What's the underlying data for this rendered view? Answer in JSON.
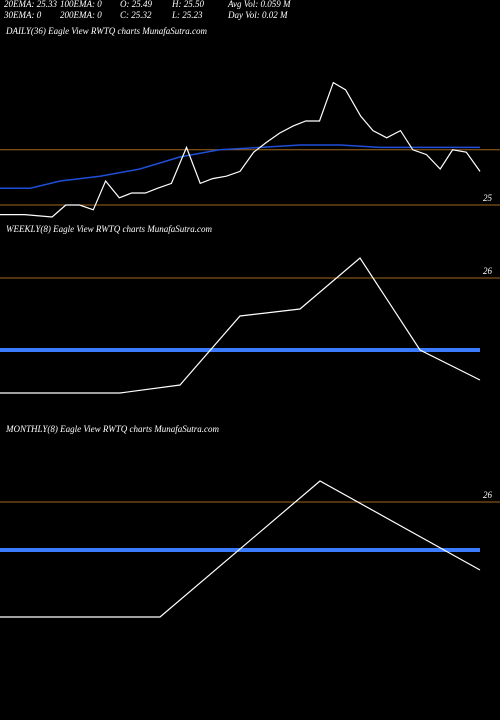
{
  "header": {
    "rows": [
      [
        "20EMA: 25.33",
        "100EMA: 0",
        "O: 25.49",
        "H: 25.50",
        "Avg Vol: 0.059 M"
      ],
      [
        "30EMA: 0",
        "200EMA: 0",
        "C: 25.32",
        "L: 25.23",
        "Day Vol: 0.02 M"
      ]
    ]
  },
  "chart_data": [
    {
      "type": "line",
      "title": "DAILY(36) Eagle  View  RWTQ charts MunafaSutra.com",
      "xlim": [
        0,
        35
      ],
      "ylim": [
        24.95,
        25.7
      ],
      "yticks": [
        25
      ],
      "reference_lines": [
        25.23
      ],
      "series": [
        {
          "name": "Price",
          "color": "#ffffff",
          "width": 1.2,
          "x": [
            0,
            1.8,
            3.8,
            4.8,
            5.8,
            6.8,
            7.7,
            8.7,
            9.6,
            10.6,
            11.5,
            12.5,
            13.6,
            14.6,
            15.5,
            16.5,
            17.5,
            18.5,
            19.4,
            20.4,
            21.4,
            22.3,
            23.3,
            24.3,
            25.2,
            26.3,
            27.2,
            28.2,
            29.2,
            30.1,
            31.1,
            32.1,
            33,
            34,
            35
          ],
          "values": [
            24.96,
            24.96,
            24.95,
            25,
            25,
            24.98,
            25.1,
            25.03,
            25.05,
            25.05,
            25.07,
            25.09,
            25.24,
            25.09,
            25.11,
            25.12,
            25.14,
            25.22,
            25.26,
            25.3,
            25.33,
            25.35,
            25.35,
            25.51,
            25.48,
            25.37,
            25.31,
            25.28,
            25.31,
            25.23,
            25.21,
            25.15,
            25.23,
            25.22,
            25.14
          ]
        },
        {
          "name": "20EMA",
          "color": "#1f4fd8",
          "width": 1.5,
          "x": [
            0,
            2.2,
            4.4,
            7.3,
            10.2,
            13.1,
            16,
            19,
            21.9,
            24.8,
            27.7,
            30.6,
            35
          ],
          "values": [
            25.07,
            25.07,
            25.1,
            25.12,
            25.15,
            25.2,
            25.23,
            25.24,
            25.25,
            25.25,
            25.24,
            25.24,
            25.24
          ]
        }
      ]
    },
    {
      "type": "line",
      "title": "WEEKLY(8) Eagle  View  RWTQ charts MunafaSutra.com",
      "xlim": [
        0,
        8
      ],
      "ylim": [
        24.8,
        26.4
      ],
      "yticks": [
        26
      ],
      "series": [
        {
          "name": "Price",
          "color": "#ffffff",
          "width": 1.2,
          "x": [
            0,
            2,
            3,
            4,
            5,
            6,
            7,
            8
          ],
          "values": [
            24.85,
            24.85,
            24.93,
            25.62,
            25.69,
            26.2,
            25.28,
            24.98
          ]
        },
        {
          "name": "20EMA",
          "color": "#3a7bff",
          "width": 4,
          "x": [
            0,
            8
          ],
          "values": [
            25.28,
            25.28
          ]
        }
      ]
    },
    {
      "type": "line",
      "title": "MONTHLY(8) Eagle  View  RWTQ charts MunafaSutra.com",
      "xlim": [
        0,
        3
      ],
      "ylim": [
        24.8,
        26.4
      ],
      "yticks": [
        26
      ],
      "series": [
        {
          "name": "Price",
          "color": "#ffffff",
          "width": 1.2,
          "x": [
            0,
            1,
            2,
            3
          ],
          "values": [
            24.85,
            24.85,
            26.21,
            25.32
          ]
        },
        {
          "name": "20EMA",
          "color": "#3a7bff",
          "width": 4,
          "x": [
            0,
            3
          ],
          "values": [
            25.52,
            25.52
          ]
        }
      ]
    }
  ]
}
